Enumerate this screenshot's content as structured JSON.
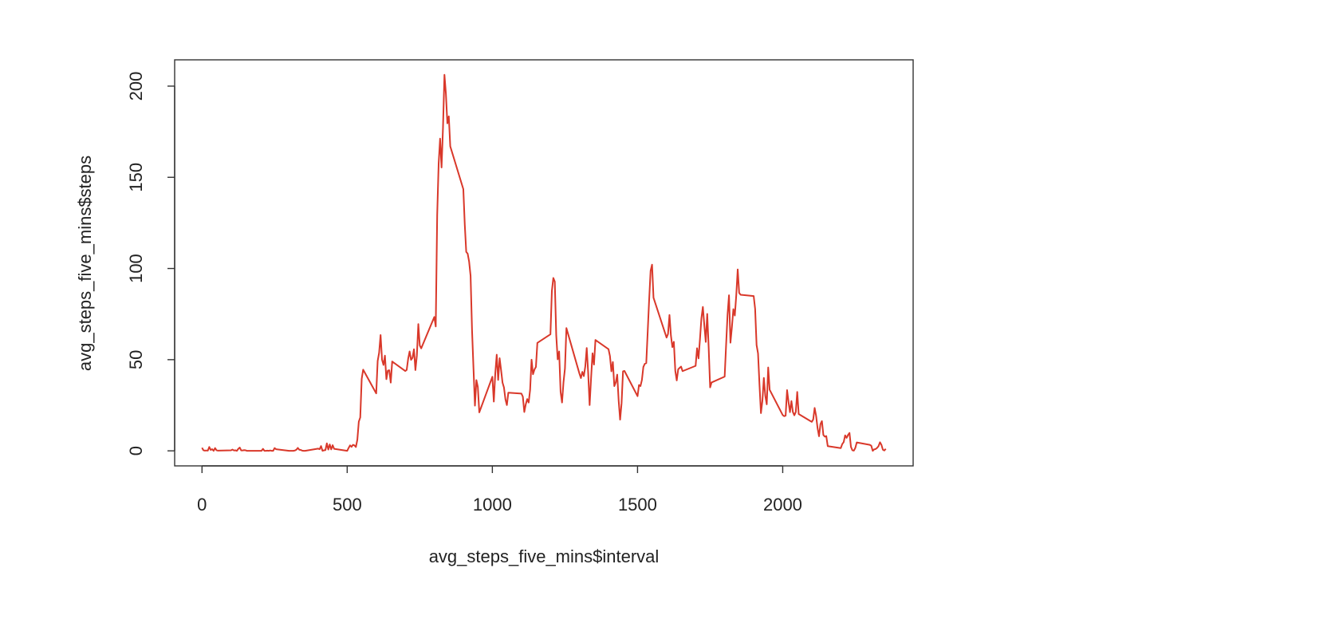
{
  "chart_data": {
    "type": "line",
    "xlabel": "avg_steps_five_mins$interval",
    "ylabel": "avg_steps_five_mins$steps",
    "xlim": [
      -94.2,
      2449.2
    ],
    "ylim": [
      -8.25,
      214.42
    ],
    "xticks": [
      0,
      500,
      1000,
      1500,
      2000
    ],
    "yticks": [
      0,
      50,
      100,
      150,
      200
    ],
    "grid": false,
    "x": [
      0,
      5,
      10,
      15,
      20,
      25,
      30,
      35,
      40,
      45,
      50,
      55,
      100,
      105,
      110,
      115,
      120,
      125,
      130,
      135,
      140,
      145,
      150,
      155,
      200,
      205,
      210,
      215,
      220,
      225,
      230,
      235,
      240,
      245,
      250,
      255,
      300,
      305,
      310,
      315,
      320,
      325,
      330,
      335,
      340,
      345,
      350,
      355,
      400,
      405,
      410,
      415,
      420,
      425,
      430,
      435,
      440,
      445,
      450,
      455,
      500,
      505,
      510,
      515,
      520,
      525,
      530,
      535,
      540,
      545,
      550,
      555,
      600,
      605,
      610,
      615,
      620,
      625,
      630,
      635,
      640,
      645,
      650,
      655,
      700,
      705,
      710,
      715,
      720,
      725,
      730,
      735,
      740,
      745,
      750,
      755,
      800,
      805,
      810,
      815,
      820,
      825,
      830,
      835,
      840,
      845,
      850,
      855,
      900,
      905,
      910,
      915,
      920,
      925,
      930,
      935,
      940,
      945,
      950,
      955,
      1000,
      1005,
      1010,
      1015,
      1020,
      1025,
      1030,
      1035,
      1040,
      1045,
      1050,
      1055,
      1100,
      1105,
      1110,
      1115,
      1120,
      1125,
      1130,
      1135,
      1140,
      1145,
      1150,
      1155,
      1200,
      1205,
      1210,
      1215,
      1220,
      1225,
      1230,
      1235,
      1240,
      1245,
      1250,
      1255,
      1300,
      1305,
      1310,
      1315,
      1320,
      1325,
      1330,
      1335,
      1340,
      1345,
      1350,
      1355,
      1400,
      1405,
      1410,
      1415,
      1420,
      1425,
      1430,
      1435,
      1440,
      1445,
      1450,
      1455,
      1500,
      1505,
      1510,
      1515,
      1520,
      1525,
      1530,
      1535,
      1540,
      1545,
      1550,
      1555,
      1600,
      1605,
      1610,
      1615,
      1620,
      1625,
      1630,
      1635,
      1640,
      1645,
      1650,
      1655,
      1700,
      1705,
      1710,
      1715,
      1720,
      1725,
      1730,
      1735,
      1740,
      1745,
      1750,
      1755,
      1800,
      1805,
      1810,
      1815,
      1820,
      1825,
      1830,
      1835,
      1840,
      1845,
      1850,
      1855,
      1900,
      1905,
      1910,
      1915,
      1920,
      1925,
      1930,
      1935,
      1940,
      1945,
      1950,
      1955,
      2000,
      2005,
      2010,
      2015,
      2020,
      2025,
      2030,
      2035,
      2040,
      2045,
      2050,
      2055,
      2100,
      2105,
      2110,
      2115,
      2120,
      2125,
      2130,
      2135,
      2140,
      2145,
      2150,
      2155,
      2200,
      2205,
      2210,
      2215,
      2220,
      2225,
      2230,
      2235,
      2240,
      2245,
      2250,
      2255,
      2300,
      2305,
      2310,
      2315,
      2320,
      2325,
      2330,
      2335,
      2340,
      2345,
      2350,
      2355
    ],
    "series": [
      {
        "color": "#d9382a",
        "values": [
          1.7,
          0.3,
          0.1,
          0.2,
          0.1,
          2.1,
          0.5,
          0.9,
          0,
          1.5,
          0.3,
          0.1,
          0.3,
          0.7,
          0.2,
          0.3,
          0,
          1.1,
          1.8,
          0.2,
          0.2,
          0.4,
          0.3,
          0,
          0,
          0,
          1.1,
          0,
          0,
          0.1,
          0,
          0.2,
          0,
          0,
          1.5,
          0.9,
          0,
          0,
          0,
          0,
          0.2,
          0.6,
          1.6,
          0.6,
          0.5,
          0.1,
          0,
          0,
          1.2,
          0.9,
          2.6,
          0,
          0.3,
          0.4,
          4.1,
          0.7,
          3.5,
          0.8,
          3.1,
          1.1,
          0,
          1.6,
          3,
          2.2,
          3.3,
          3,
          2.1,
          6.1,
          16,
          18.3,
          39.5,
          44.5,
          31.5,
          49.3,
          53.8,
          63.5,
          50,
          47.1,
          52.2,
          39.3,
          44,
          44.2,
          37.4,
          49,
          43.8,
          44.4,
          50.5,
          54.5,
          49.9,
          51,
          55.7,
          44.3,
          52.3,
          69.5,
          57.8,
          56.2,
          73.4,
          68.2,
          129.4,
          157.5,
          171.2,
          155.4,
          177.3,
          206.2,
          195.9,
          179.6,
          183.4,
          167,
          143.5,
          124,
          109.1,
          108.1,
          103.7,
          95.97,
          66.2,
          45.2,
          24.8,
          38.8,
          35,
          21.1,
          40.6,
          27,
          42.4,
          52.7,
          38.9,
          50.8,
          44.3,
          37.4,
          34.7,
          28.3,
          25.1,
          31.9,
          31.4,
          29.7,
          21.3,
          25.5,
          28.4,
          26.5,
          33.4,
          49.98,
          42,
          44.6,
          46,
          59.2,
          63.9,
          87.7,
          94.8,
          92.8,
          63.4,
          50.2,
          54.5,
          32.4,
          26.5,
          37.7,
          45.1,
          67.3,
          42.3,
          39.9,
          43.3,
          40.98,
          46.2,
          56.4,
          42.75,
          25.1,
          39.97,
          53.5,
          47.3,
          60.8,
          55.75,
          51.96,
          43.6,
          48.7,
          35.5,
          37.5,
          41.8,
          27.5,
          17.1,
          26.1,
          43.6,
          43.8,
          30,
          36.1,
          35.5,
          38.8,
          45.96,
          47.75,
          48.1,
          65.3,
          82.9,
          98.7,
          102.1,
          83.96,
          62.1,
          64.1,
          74.5,
          63.2,
          56.9,
          59.8,
          43.9,
          38.6,
          44.7,
          45.5,
          46.2,
          43.7,
          46.6,
          56.3,
          50.7,
          61.2,
          72.7,
          78.9,
          68.9,
          59.7,
          75.1,
          56.5,
          34.8,
          37.5,
          40.7,
          58,
          74.7,
          85.3,
          59.3,
          67.8,
          77.7,
          74.2,
          85.3,
          99.5,
          86.6,
          85.6,
          84.9,
          77.8,
          58,
          53.4,
          36.3,
          20.7,
          27.4,
          40,
          30.2,
          25.5,
          45.7,
          33.5,
          19.6,
          19,
          19.3,
          33.3,
          26.8,
          21.2,
          27.3,
          21.3,
          19.5,
          21.3,
          32.3,
          20.2,
          15.9,
          17.2,
          23.5,
          19.2,
          12.5,
          8,
          14.7,
          16.3,
          8.7,
          7.8,
          8.1,
          2.6,
          1.5,
          3.7,
          4.8,
          8.5,
          7.1,
          8.7,
          9.8,
          2.2,
          0.3,
          0.1,
          1.6,
          4.6,
          3.3,
          2.8,
          0,
          0.8,
          1,
          1.6,
          2.6,
          4.7,
          3.3,
          0.6,
          0.2,
          1.1
        ]
      }
    ]
  }
}
